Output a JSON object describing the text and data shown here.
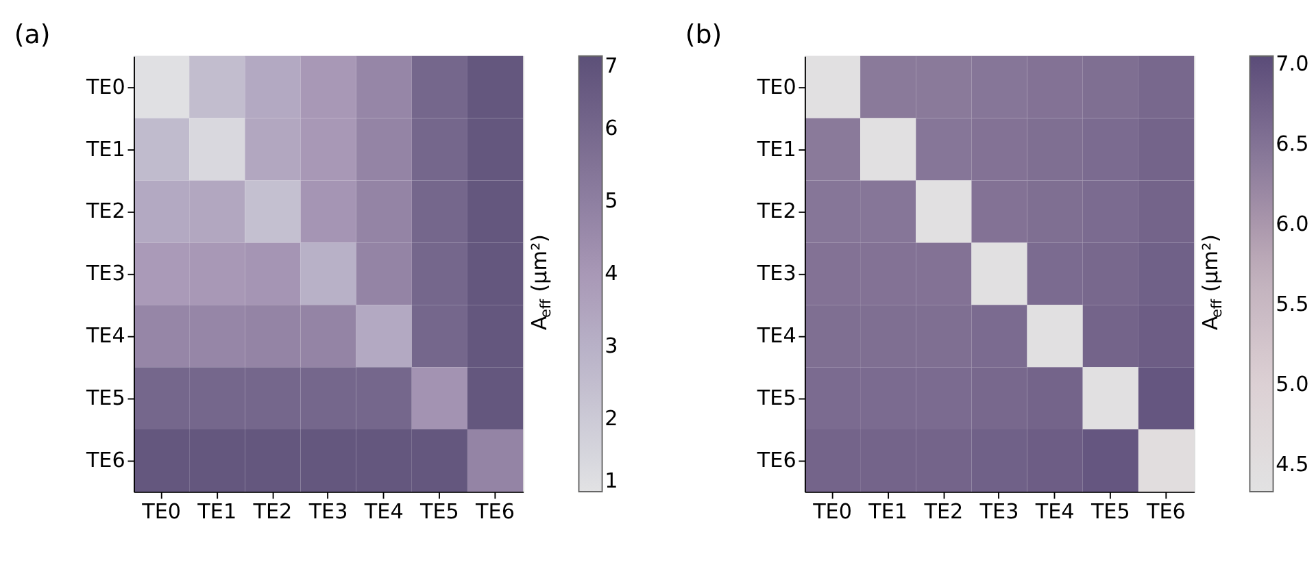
{
  "chart_data": [
    {
      "type": "heatmap",
      "title": "(a)",
      "categories": [
        "TE0",
        "TE1",
        "TE2",
        "TE3",
        "TE4",
        "TE5",
        "TE6"
      ],
      "y_categories": [
        "TE0",
        "TE1",
        "TE2",
        "TE3",
        "TE4",
        "TE5",
        "TE6"
      ],
      "cells": [
        [
          1.1,
          2.5,
          3.3,
          4.0,
          4.7,
          6.0,
          6.7
        ],
        [
          2.6,
          1.4,
          3.4,
          4.0,
          4.8,
          6.0,
          6.7
        ],
        [
          3.3,
          3.4,
          2.4,
          4.1,
          4.8,
          6.0,
          6.7
        ],
        [
          3.9,
          4.0,
          4.1,
          3.0,
          4.8,
          6.0,
          6.7
        ],
        [
          4.7,
          4.7,
          4.8,
          4.8,
          3.3,
          6.0,
          6.7
        ],
        [
          6.0,
          6.0,
          6.0,
          6.0,
          6.0,
          4.2,
          6.7
        ],
        [
          6.7,
          6.7,
          6.7,
          6.7,
          6.7,
          6.7,
          4.8
        ]
      ],
      "clim": [
        1,
        7
      ],
      "cticks": [
        1,
        2,
        3,
        4,
        5,
        6,
        7
      ],
      "clabel": "A$_{eff}$ (μm²)"
    },
    {
      "type": "heatmap",
      "title": "(b)",
      "categories": [
        "TE0",
        "TE1",
        "TE2",
        "TE3",
        "TE4",
        "TE5",
        "TE6"
      ],
      "y_categories": [
        "TE0",
        "TE1",
        "TE2",
        "TE3",
        "TE4",
        "TE5",
        "TE6"
      ],
      "cells": [
        [
          4.4,
          6.4,
          6.4,
          6.45,
          6.5,
          6.55,
          6.65
        ],
        [
          6.4,
          4.4,
          6.45,
          6.5,
          6.55,
          6.6,
          6.7
        ],
        [
          6.45,
          6.45,
          4.4,
          6.5,
          6.55,
          6.6,
          6.7
        ],
        [
          6.5,
          6.5,
          6.5,
          4.4,
          6.6,
          6.65,
          6.75
        ],
        [
          6.55,
          6.55,
          6.55,
          6.6,
          4.4,
          6.7,
          6.8
        ],
        [
          6.6,
          6.6,
          6.6,
          6.65,
          6.7,
          4.4,
          6.9
        ],
        [
          6.7,
          6.7,
          6.7,
          6.75,
          6.8,
          6.9,
          4.5
        ]
      ],
      "clim": [
        4.33,
        7.05
      ],
      "cticks": [
        {
          "value": 4.5,
          "label": "4.5"
        },
        {
          "value": 5,
          "label": "5.0"
        },
        {
          "value": 5.5,
          "label": "5.5"
        },
        {
          "value": 6,
          "label": "6.0"
        },
        {
          "value": 6.5,
          "label": "6.5"
        },
        {
          "value": 7,
          "label": "7.0"
        }
      ],
      "clabel": "A$_{eff}$ (μm²)"
    }
  ]
}
